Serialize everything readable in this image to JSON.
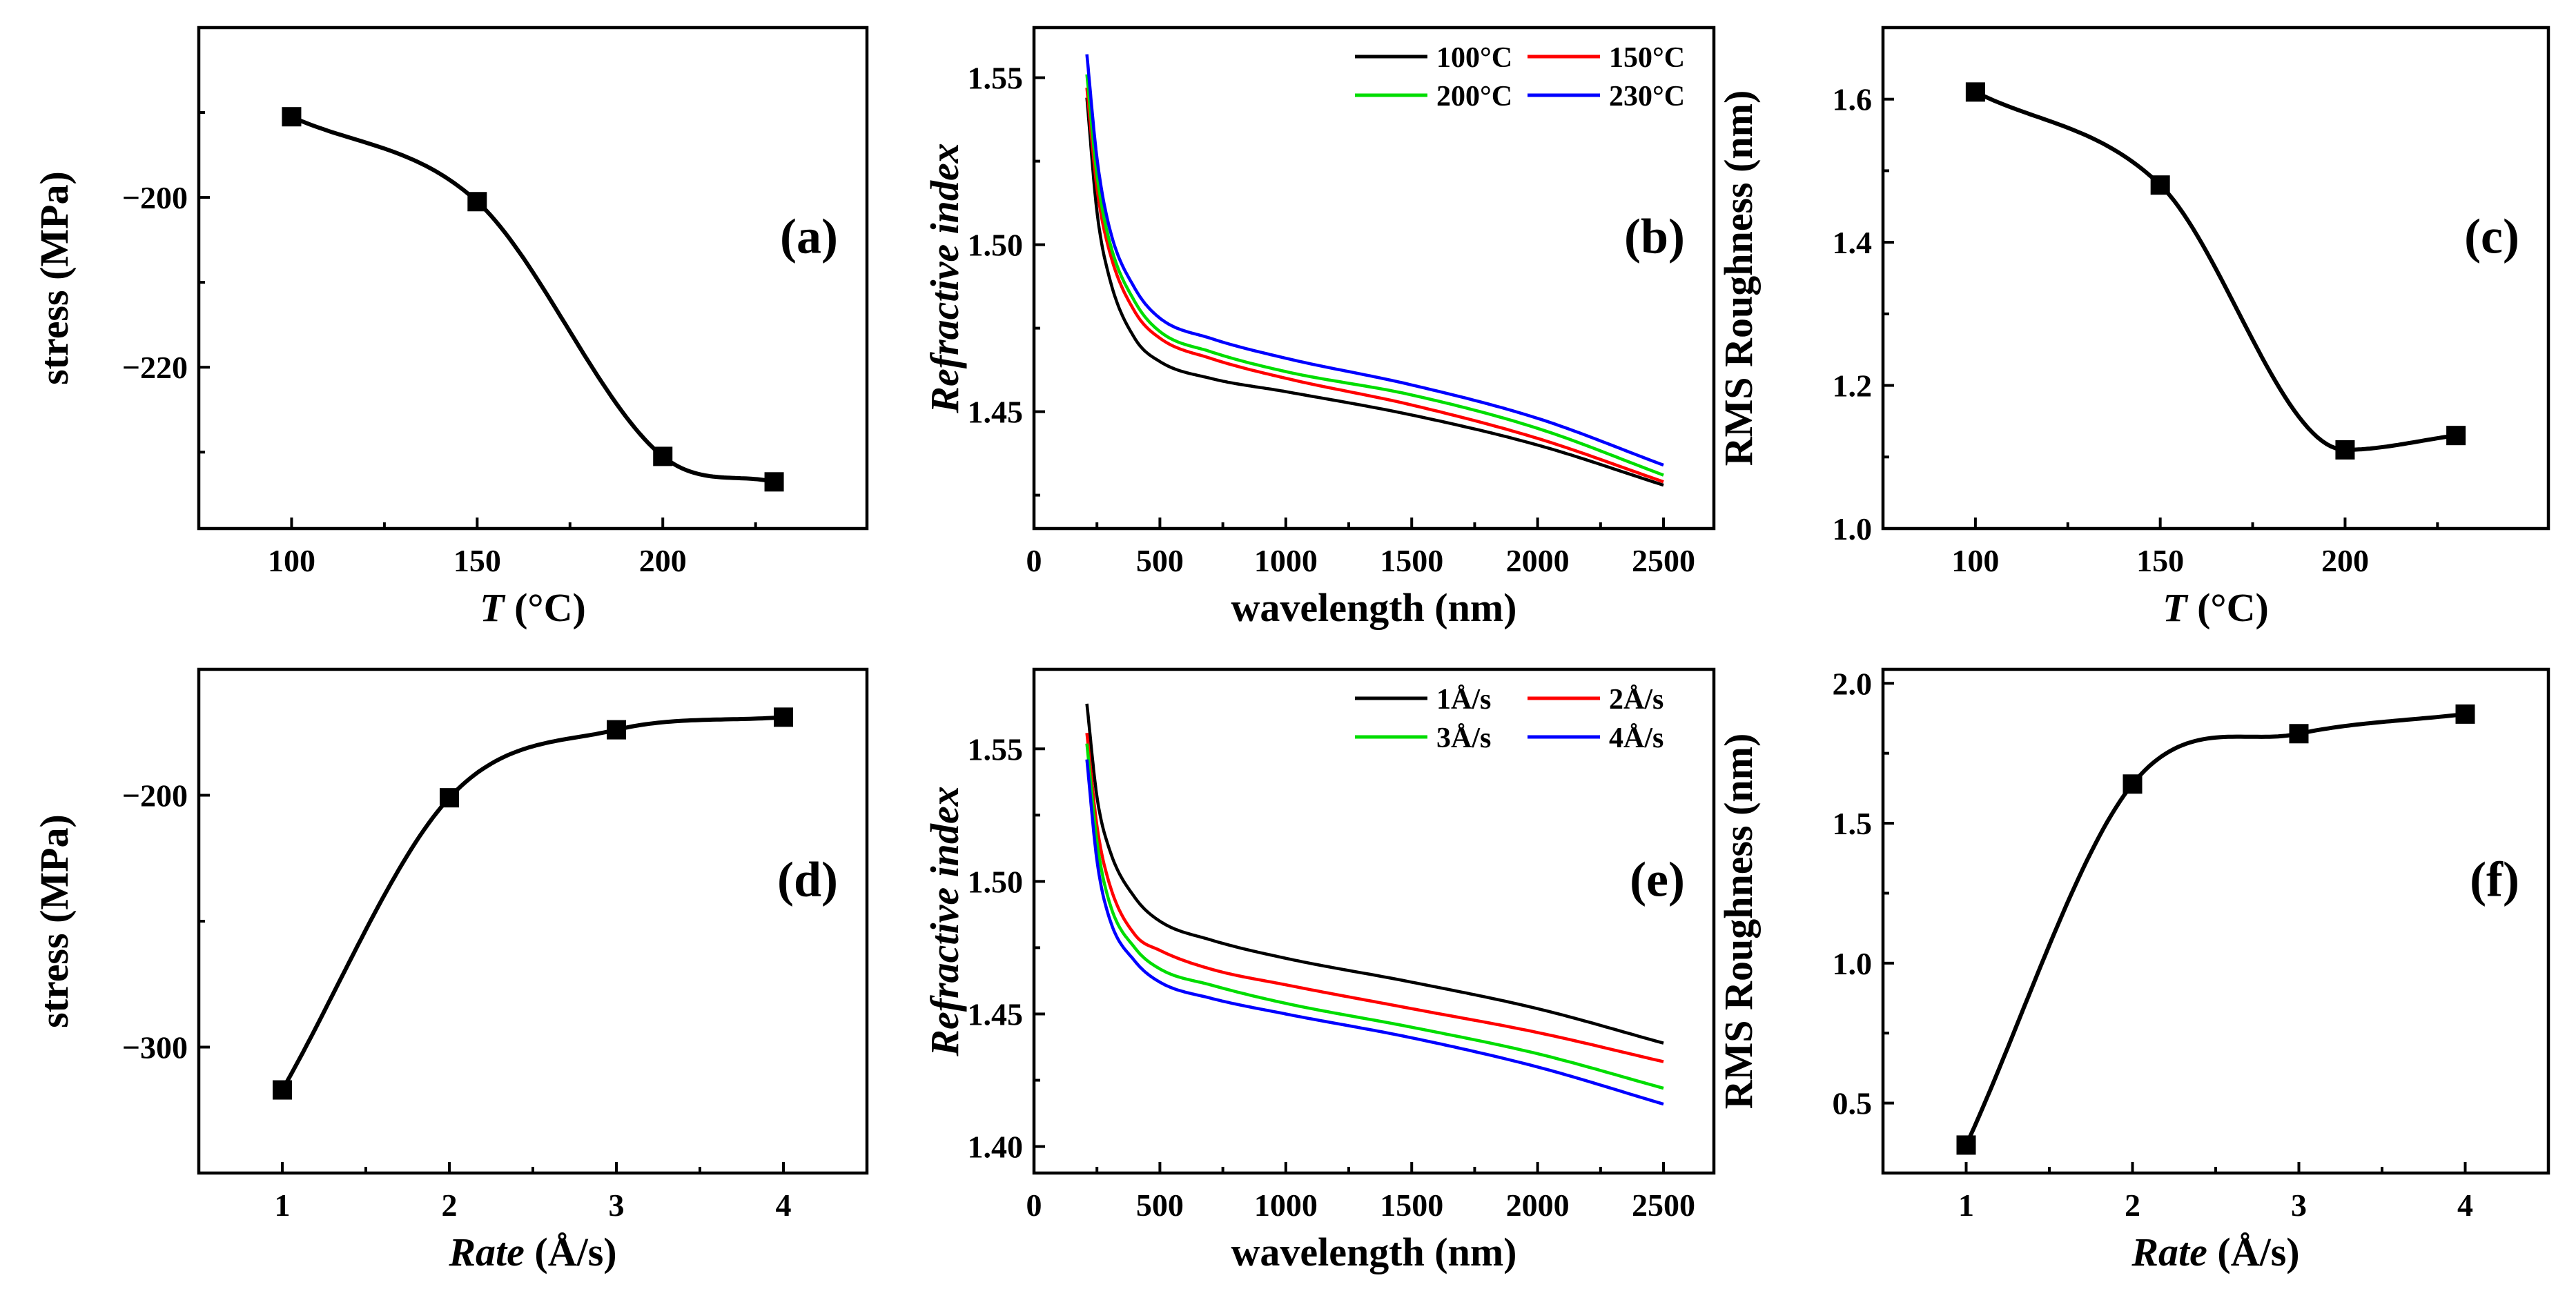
{
  "chart_data": [
    {
      "id": "a",
      "type": "scatter",
      "panel_label": "(a)",
      "xlabel": {
        "italic": "T",
        "plain": " (°C)"
      },
      "ylabel": {
        "italic": "",
        "plain": "stress (MPa)"
      },
      "xlim": [
        75,
        255
      ],
      "ylim": [
        -239,
        -180
      ],
      "xticks": [
        100,
        150,
        200
      ],
      "yticks": [
        -200,
        -220
      ],
      "minor_xticks": [
        125,
        175,
        225
      ],
      "minor_yticks": [
        -190,
        -210,
        -230
      ],
      "x": [
        100,
        150,
        200,
        230
      ],
      "y": [
        -190.5,
        -200.5,
        -230.5,
        -233.5
      ],
      "fit_line": true
    },
    {
      "id": "b",
      "type": "line",
      "panel_label": "(b)",
      "xlabel": {
        "italic": "",
        "plain": "wavelength (nm)"
      },
      "ylabel": {
        "italic": "Refractive index",
        "plain": ""
      },
      "xlim": [
        0,
        2700
      ],
      "ylim": [
        1.415,
        1.565
      ],
      "xticks": [
        0,
        500,
        1000,
        1500,
        2000,
        2500
      ],
      "yticks": [
        1.45,
        1.5,
        1.55
      ],
      "minor_xticks": [
        250,
        750,
        1250,
        1750,
        2250
      ],
      "minor_yticks": [
        1.425,
        1.475,
        1.525
      ],
      "x": [
        210,
        250,
        300,
        400,
        500,
        700,
        1000,
        1500,
        2000,
        2500
      ],
      "legend": {
        "columns": 2,
        "position": "top-right"
      },
      "series": [
        {
          "name": "100°C",
          "color": "#000000",
          "values": [
            1.544,
            1.51,
            1.49,
            1.472,
            1.465,
            1.46,
            1.456,
            1.449,
            1.44,
            1.428
          ]
        },
        {
          "name": "150°C",
          "color": "#ff0000",
          "values": [
            1.547,
            1.517,
            1.498,
            1.48,
            1.472,
            1.466,
            1.46,
            1.452,
            1.442,
            1.429
          ]
        },
        {
          "name": "200°C",
          "color": "#00dd00",
          "values": [
            1.551,
            1.521,
            1.501,
            1.483,
            1.474,
            1.468,
            1.462,
            1.455,
            1.445,
            1.431
          ]
        },
        {
          "name": "230°C",
          "color": "#0000ff",
          "values": [
            1.557,
            1.526,
            1.505,
            1.487,
            1.478,
            1.472,
            1.466,
            1.458,
            1.448,
            1.434
          ]
        }
      ]
    },
    {
      "id": "c",
      "type": "scatter",
      "panel_label": "(c)",
      "xlabel": {
        "italic": "T",
        "plain": " (°C)"
      },
      "ylabel": {
        "italic": "",
        "plain": "RMS Roughness (nm)"
      },
      "xlim": [
        75,
        255
      ],
      "ylim": [
        1.0,
        1.7
      ],
      "xticks": [
        100,
        150,
        200
      ],
      "yticks": [
        1.0,
        1.2,
        1.4,
        1.6
      ],
      "minor_xticks": [
        125,
        175,
        225
      ],
      "minor_yticks": [
        1.1,
        1.3,
        1.5
      ],
      "x": [
        100,
        150,
        200,
        230
      ],
      "y": [
        1.61,
        1.48,
        1.11,
        1.13
      ],
      "fit_line": true
    },
    {
      "id": "d",
      "type": "scatter",
      "panel_label": "(d)",
      "xlabel": {
        "italic": "Rate",
        "plain": " (Å/s)"
      },
      "ylabel": {
        "italic": "",
        "plain": "stress (MPa)"
      },
      "xlim": [
        0.5,
        4.5
      ],
      "ylim": [
        -350,
        -150
      ],
      "xticks": [
        1,
        2,
        3,
        4
      ],
      "yticks": [
        -200,
        -300
      ],
      "minor_xticks": [
        1.5,
        2.5,
        3.5
      ],
      "minor_yticks": [
        -250
      ],
      "x": [
        1,
        2,
        3,
        4
      ],
      "y": [
        -317,
        -201,
        -174,
        -169
      ],
      "fit_line": true
    },
    {
      "id": "e",
      "type": "line",
      "panel_label": "(e)",
      "xlabel": {
        "italic": "",
        "plain": "wavelength (nm)"
      },
      "ylabel": {
        "italic": "Refractive index",
        "plain": ""
      },
      "xlim": [
        0,
        2700
      ],
      "ylim": [
        1.39,
        1.58
      ],
      "xticks": [
        0,
        500,
        1000,
        1500,
        2000,
        2500
      ],
      "yticks": [
        1.4,
        1.45,
        1.5,
        1.55
      ],
      "minor_xticks": [
        250,
        750,
        1250,
        1750,
        2250
      ],
      "minor_yticks": [
        1.425,
        1.475,
        1.525
      ],
      "x": [
        210,
        250,
        300,
        400,
        500,
        700,
        1000,
        1500,
        2000,
        2500
      ],
      "legend": {
        "columns": 2,
        "position": "top-right"
      },
      "series": [
        {
          "name": "1Å/s",
          "color": "#000000",
          "values": [
            1.567,
            1.532,
            1.512,
            1.494,
            1.485,
            1.478,
            1.471,
            1.462,
            1.452,
            1.439
          ]
        },
        {
          "name": "2Å/s",
          "color": "#ff0000",
          "values": [
            1.556,
            1.521,
            1.499,
            1.48,
            1.474,
            1.467,
            1.461,
            1.452,
            1.443,
            1.432
          ]
        },
        {
          "name": "3Å/s",
          "color": "#00dd00",
          "values": [
            1.552,
            1.515,
            1.492,
            1.475,
            1.467,
            1.461,
            1.454,
            1.445,
            1.435,
            1.422
          ]
        },
        {
          "name": "4Å/s",
          "color": "#0000ff",
          "values": [
            1.546,
            1.508,
            1.486,
            1.47,
            1.462,
            1.456,
            1.45,
            1.441,
            1.43,
            1.416
          ]
        }
      ]
    },
    {
      "id": "f",
      "type": "scatter",
      "panel_label": "(f)",
      "xlabel": {
        "italic": "Rate",
        "plain": " (Å/s)"
      },
      "ylabel": {
        "italic": "",
        "plain": "RMS Roughness (nm)"
      },
      "xlim": [
        0.5,
        4.5
      ],
      "ylim": [
        0.25,
        2.05
      ],
      "xticks": [
        1,
        2,
        3,
        4
      ],
      "yticks": [
        0.5,
        1.0,
        1.5,
        2.0
      ],
      "minor_xticks": [
        1.5,
        2.5,
        3.5
      ],
      "minor_yticks": [
        0.75,
        1.25,
        1.75
      ],
      "x": [
        1,
        2,
        3,
        4
      ],
      "y": [
        0.35,
        1.64,
        1.82,
        1.89
      ],
      "fit_line": true
    }
  ]
}
